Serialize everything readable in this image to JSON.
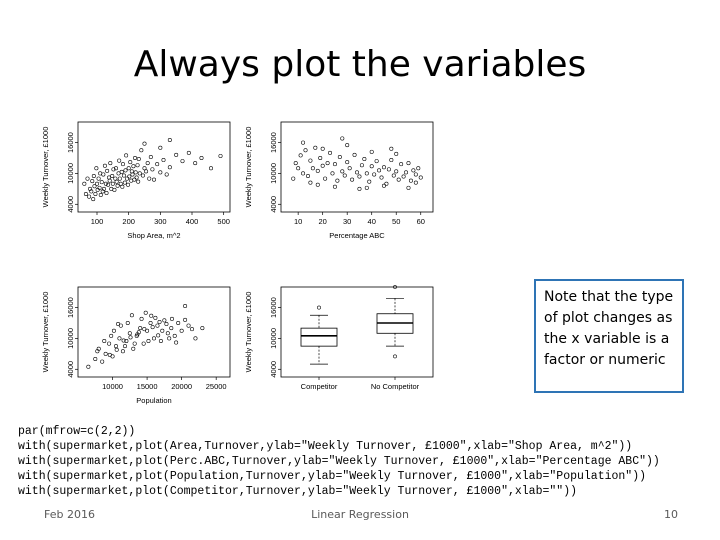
{
  "slide": {
    "title": "Always plot the variables",
    "note": "Note that the type of plot changes as the x variable is a factor or numeric",
    "code": [
      "par(mfrow=c(2,2))",
      "with(supermarket,plot(Area,Turnover,ylab=\"Weekly Turnover, £1000\",xlab=\"Shop Area, m^2\"))",
      "with(supermarket,plot(Perc.ABC,Turnover,ylab=\"Weekly Turnover, £1000\",xlab=\"Percentage ABC\"))",
      "with(supermarket,plot(Population,Turnover,ylab=\"Weekly Turnover, £1000\",xlab=\"Population\"))",
      "with(supermarket,plot(Competitor,Turnover,ylab=\"Weekly Turnover, £1000\",xlab=\"\"))"
    ],
    "footer": {
      "date": "Feb 2016",
      "center": "Linear Regression",
      "page": "10"
    }
  },
  "chart_data": [
    {
      "type": "scatter",
      "xlabel": "Shop Area, m^2",
      "ylabel": "Weekly Turnover, £1000",
      "xlim": [
        40,
        520
      ],
      "ylim": [
        2500,
        20000
      ],
      "xticks": [
        100,
        200,
        300,
        400,
        500
      ],
      "yticks": [
        4000,
        10000,
        16000
      ],
      "points": [
        [
          60,
          8000
        ],
        [
          65,
          6000
        ],
        [
          70,
          9000
        ],
        [
          75,
          5500
        ],
        [
          78,
          7000
        ],
        [
          82,
          6500
        ],
        [
          85,
          8500
        ],
        [
          88,
          5000
        ],
        [
          90,
          9500
        ],
        [
          92,
          7500
        ],
        [
          95,
          6000
        ],
        [
          98,
          11000
        ],
        [
          100,
          8000
        ],
        [
          102,
          6800
        ],
        [
          105,
          9000
        ],
        [
          108,
          7200
        ],
        [
          110,
          10000
        ],
        [
          112,
          5800
        ],
        [
          115,
          8300
        ],
        [
          118,
          6500
        ],
        [
          120,
          9800
        ],
        [
          122,
          7000
        ],
        [
          125,
          11500
        ],
        [
          128,
          8000
        ],
        [
          130,
          6200
        ],
        [
          132,
          10500
        ],
        [
          135,
          7800
        ],
        [
          138,
          9200
        ],
        [
          140,
          8600
        ],
        [
          142,
          12000
        ],
        [
          145,
          7000
        ],
        [
          148,
          9500
        ],
        [
          150,
          8000
        ],
        [
          152,
          10800
        ],
        [
          155,
          6800
        ],
        [
          158,
          9000
        ],
        [
          160,
          11000
        ],
        [
          162,
          8400
        ],
        [
          165,
          7600
        ],
        [
          168,
          10000
        ],
        [
          170,
          12500
        ],
        [
          172,
          9000
        ],
        [
          175,
          8000
        ],
        [
          178,
          10300
        ],
        [
          180,
          7400
        ],
        [
          182,
          11800
        ],
        [
          185,
          9600
        ],
        [
          188,
          8200
        ],
        [
          190,
          10600
        ],
        [
          192,
          13500
        ],
        [
          195,
          9000
        ],
        [
          198,
          7800
        ],
        [
          200,
          11000
        ],
        [
          202,
          9400
        ],
        [
          205,
          12200
        ],
        [
          208,
          8600
        ],
        [
          210,
          10400
        ],
        [
          212,
          9800
        ],
        [
          215,
          11400
        ],
        [
          218,
          8800
        ],
        [
          220,
          13000
        ],
        [
          222,
          10200
        ],
        [
          225,
          9200
        ],
        [
          228,
          11600
        ],
        [
          230,
          8400
        ],
        [
          232,
          12800
        ],
        [
          235,
          10000
        ],
        [
          240,
          14500
        ],
        [
          245,
          9600
        ],
        [
          250,
          11000
        ],
        [
          255,
          10400
        ],
        [
          260,
          12000
        ],
        [
          265,
          9000
        ],
        [
          270,
          13200
        ],
        [
          275,
          10800
        ],
        [
          280,
          8800
        ],
        [
          290,
          11800
        ],
        [
          300,
          10200
        ],
        [
          310,
          12600
        ],
        [
          320,
          9800
        ],
        [
          330,
          11200
        ],
        [
          350,
          13600
        ],
        [
          370,
          12400
        ],
        [
          390,
          14000
        ],
        [
          410,
          12000
        ],
        [
          430,
          13000
        ],
        [
          460,
          11000
        ],
        [
          490,
          13400
        ],
        [
          330,
          16500
        ],
        [
          300,
          15000
        ],
        [
          250,
          15800
        ]
      ]
    },
    {
      "type": "scatter",
      "xlabel": "Percentage ABC",
      "ylabel": "Weekly Turnover, £1000",
      "xlim": [
        3,
        65
      ],
      "ylim": [
        2500,
        20000
      ],
      "xticks": [
        10,
        20,
        30,
        40,
        50,
        60
      ],
      "yticks": [
        4000,
        10000,
        16000
      ],
      "points": [
        [
          8,
          9000
        ],
        [
          9,
          12000
        ],
        [
          10,
          11000
        ],
        [
          11,
          13500
        ],
        [
          12,
          10000
        ],
        [
          13,
          14500
        ],
        [
          14,
          9500
        ],
        [
          15,
          12500
        ],
        [
          16,
          11000
        ],
        [
          17,
          15000
        ],
        [
          18,
          10500
        ],
        [
          19,
          13000
        ],
        [
          20,
          11500
        ],
        [
          21,
          9000
        ],
        [
          22,
          12000
        ],
        [
          23,
          14000
        ],
        [
          24,
          10000
        ],
        [
          25,
          11800
        ],
        [
          26,
          8600
        ],
        [
          27,
          13200
        ],
        [
          28,
          10400
        ],
        [
          29,
          9600
        ],
        [
          30,
          12200
        ],
        [
          31,
          11000
        ],
        [
          32,
          8800
        ],
        [
          33,
          13600
        ],
        [
          34,
          10200
        ],
        [
          35,
          9400
        ],
        [
          36,
          11600
        ],
        [
          37,
          12800
        ],
        [
          38,
          10000
        ],
        [
          39,
          8400
        ],
        [
          40,
          11400
        ],
        [
          41,
          9800
        ],
        [
          42,
          12400
        ],
        [
          43,
          10600
        ],
        [
          44,
          9200
        ],
        [
          45,
          11200
        ],
        [
          46,
          8000
        ],
        [
          47,
          10800
        ],
        [
          48,
          12600
        ],
        [
          49,
          9600
        ],
        [
          50,
          10400
        ],
        [
          51,
          8800
        ],
        [
          52,
          11800
        ],
        [
          53,
          9400
        ],
        [
          54,
          10200
        ],
        [
          55,
          12000
        ],
        [
          56,
          8600
        ],
        [
          57,
          10600
        ],
        [
          58,
          9800
        ],
        [
          59,
          11000
        ],
        [
          60,
          9200
        ],
        [
          15,
          8200
        ],
        [
          25,
          7400
        ],
        [
          35,
          7000
        ],
        [
          45,
          7600
        ],
        [
          55,
          7200
        ],
        [
          20,
          14800
        ],
        [
          30,
          15500
        ],
        [
          40,
          14200
        ],
        [
          50,
          13800
        ],
        [
          12,
          16000
        ],
        [
          28,
          16800
        ],
        [
          48,
          14800
        ],
        [
          18,
          7800
        ],
        [
          38,
          7200
        ],
        [
          58,
          8200
        ]
      ]
    },
    {
      "type": "scatter",
      "xlabel": "Population",
      "ylabel": "Weekly Turnover, £1000",
      "xlim": [
        5000,
        27000
      ],
      "ylim": [
        2500,
        20000
      ],
      "xticks": [
        10000,
        15000,
        20000,
        25000
      ],
      "yticks": [
        4000,
        10000,
        16000
      ],
      "points": [
        [
          6500,
          4500
        ],
        [
          7500,
          6000
        ],
        [
          8000,
          8000
        ],
        [
          8500,
          5500
        ],
        [
          9000,
          7000
        ],
        [
          9500,
          9000
        ],
        [
          10000,
          6500
        ],
        [
          10500,
          8500
        ],
        [
          11000,
          10000
        ],
        [
          11500,
          7500
        ],
        [
          12000,
          9500
        ],
        [
          12500,
          11000
        ],
        [
          13000,
          8000
        ],
        [
          13500,
          10500
        ],
        [
          14000,
          12000
        ],
        [
          14500,
          9000
        ],
        [
          15000,
          11500
        ],
        [
          15500,
          13000
        ],
        [
          16000,
          10000
        ],
        [
          16500,
          12500
        ],
        [
          17000,
          9500
        ],
        [
          17500,
          13500
        ],
        [
          18000,
          11000
        ],
        [
          18500,
          12000
        ],
        [
          19000,
          10500
        ],
        [
          19500,
          13000
        ],
        [
          20000,
          11500
        ],
        [
          21000,
          12500
        ],
        [
          22000,
          10000
        ],
        [
          23000,
          12000
        ],
        [
          10200,
          11500
        ],
        [
          11200,
          12500
        ],
        [
          12200,
          13000
        ],
        [
          13200,
          9000
        ],
        [
          14200,
          13800
        ],
        [
          15200,
          9500
        ],
        [
          16200,
          14000
        ],
        [
          17200,
          11500
        ],
        [
          18200,
          10000
        ],
        [
          9800,
          10500
        ],
        [
          8800,
          9500
        ],
        [
          7800,
          7500
        ],
        [
          11800,
          8500
        ],
        [
          13800,
          11200
        ],
        [
          15800,
          12200
        ],
        [
          12800,
          14500
        ],
        [
          14800,
          15000
        ],
        [
          16800,
          13200
        ],
        [
          19200,
          9200
        ],
        [
          20500,
          13600
        ],
        [
          21500,
          11800
        ],
        [
          17800,
          12800
        ],
        [
          13600,
          10800
        ],
        [
          14600,
          11800
        ],
        [
          12600,
          10200
        ],
        [
          11600,
          9600
        ],
        [
          10600,
          7800
        ],
        [
          9600,
          6800
        ],
        [
          16600,
          10600
        ],
        [
          18600,
          13800
        ],
        [
          10800,
          12800
        ],
        [
          15600,
          14400
        ],
        [
          20500,
          16300
        ]
      ]
    },
    {
      "type": "box",
      "xlabel": "",
      "ylabel": "Weekly Turnover, £1000",
      "ylim": [
        2500,
        20000
      ],
      "yticks": [
        4000,
        10000,
        16000
      ],
      "categories": [
        "Competitor",
        "No Competitor"
      ],
      "boxes": [
        {
          "min": 5000,
          "q1": 8500,
          "median": 10500,
          "q3": 12000,
          "max": 14500,
          "outliers": [
            16000
          ]
        },
        {
          "min": 8500,
          "q1": 11000,
          "median": 13000,
          "q3": 14800,
          "max": 17800,
          "outliers": [
            6500,
            20000
          ]
        }
      ]
    }
  ]
}
